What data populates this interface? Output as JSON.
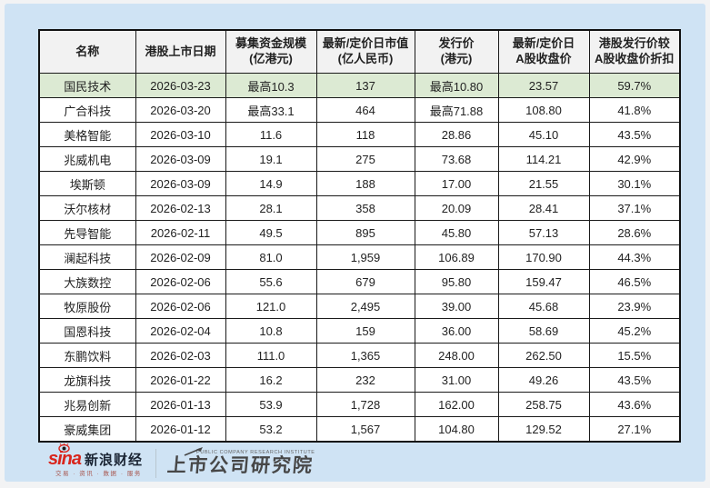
{
  "chart_data": {
    "type": "table",
    "columns": [
      {
        "label": "名称",
        "lines": [
          "名称"
        ]
      },
      {
        "label": "港股上市日期",
        "lines": [
          "港股上市日期"
        ]
      },
      {
        "label": "募集资金规模(亿港元)",
        "lines": [
          "募集资金规模",
          "(亿港元)"
        ]
      },
      {
        "label": "最新/定价日市值(亿人民币)",
        "lines": [
          "最新/定价日市值",
          "(亿人民币)"
        ]
      },
      {
        "label": "发行价(港元)",
        "lines": [
          "发行价",
          "(港元)"
        ]
      },
      {
        "label": "最新/定价日A股收盘价",
        "lines": [
          "最新/定价日",
          "A股收盘价"
        ]
      },
      {
        "label": "港股发行价较A股收盘价折扣",
        "lines": [
          "港股发行价较",
          "A股收盘价折扣"
        ]
      }
    ],
    "rows": [
      {
        "highlight": true,
        "cells": [
          "国民技术",
          "2026-03-23",
          "最高10.3",
          "137",
          "最高10.80",
          "23.57",
          "59.7%"
        ]
      },
      {
        "highlight": false,
        "cells": [
          "广合科技",
          "2026-03-20",
          "最高33.1",
          "464",
          "最高71.88",
          "108.80",
          "41.8%"
        ]
      },
      {
        "highlight": false,
        "cells": [
          "美格智能",
          "2026-03-10",
          "11.6",
          "118",
          "28.86",
          "45.10",
          "43.5%"
        ]
      },
      {
        "highlight": false,
        "cells": [
          "兆威机电",
          "2026-03-09",
          "19.1",
          "275",
          "73.68",
          "114.21",
          "42.9%"
        ]
      },
      {
        "highlight": false,
        "cells": [
          "埃斯顿",
          "2026-03-09",
          "14.9",
          "188",
          "17.00",
          "21.55",
          "30.1%"
        ]
      },
      {
        "highlight": false,
        "cells": [
          "沃尔核材",
          "2026-02-13",
          "28.1",
          "358",
          "20.09",
          "28.41",
          "37.1%"
        ]
      },
      {
        "highlight": false,
        "cells": [
          "先导智能",
          "2026-02-11",
          "49.5",
          "895",
          "45.80",
          "57.13",
          "28.6%"
        ]
      },
      {
        "highlight": false,
        "cells": [
          "澜起科技",
          "2026-02-09",
          "81.0",
          "1,959",
          "106.89",
          "170.90",
          "44.3%"
        ]
      },
      {
        "highlight": false,
        "cells": [
          "大族数控",
          "2026-02-06",
          "55.6",
          "679",
          "95.80",
          "159.47",
          "46.5%"
        ]
      },
      {
        "highlight": false,
        "cells": [
          "牧原股份",
          "2026-02-06",
          "121.0",
          "2,495",
          "39.00",
          "45.68",
          "23.9%"
        ]
      },
      {
        "highlight": false,
        "cells": [
          "国恩科技",
          "2026-02-04",
          "10.8",
          "159",
          "36.00",
          "58.69",
          "45.2%"
        ]
      },
      {
        "highlight": false,
        "cells": [
          "东鹏饮料",
          "2026-02-03",
          "111.0",
          "1,365",
          "248.00",
          "262.50",
          "15.5%"
        ]
      },
      {
        "highlight": false,
        "cells": [
          "龙旗科技",
          "2026-01-22",
          "16.2",
          "232",
          "31.00",
          "49.26",
          "43.5%"
        ]
      },
      {
        "highlight": false,
        "cells": [
          "兆易创新",
          "2026-01-13",
          "53.9",
          "1,728",
          "162.00",
          "258.75",
          "43.6%"
        ]
      },
      {
        "highlight": false,
        "cells": [
          "豪威集团",
          "2026-01-12",
          "53.2",
          "1,567",
          "104.80",
          "129.52",
          "27.1%"
        ]
      }
    ],
    "highlighted_row": "国民技术",
    "layout_hints": {
      "header_background": "#f2f2f2",
      "highlight_row_background": "#dcead3",
      "panel_background": "#cfe3f4",
      "border_color": "#1a1a1a"
    }
  },
  "footer": {
    "sina_wordmark": "sina",
    "brand_name": "新浪财经",
    "brand_tagline": "交易 · 资讯 · 数据 · 服务",
    "institute_caption": "PUBLIC COMPANY RESEARCH INSTITUTE",
    "institute_name": "上市公司研究院",
    "sina_red": "#d9251c"
  }
}
